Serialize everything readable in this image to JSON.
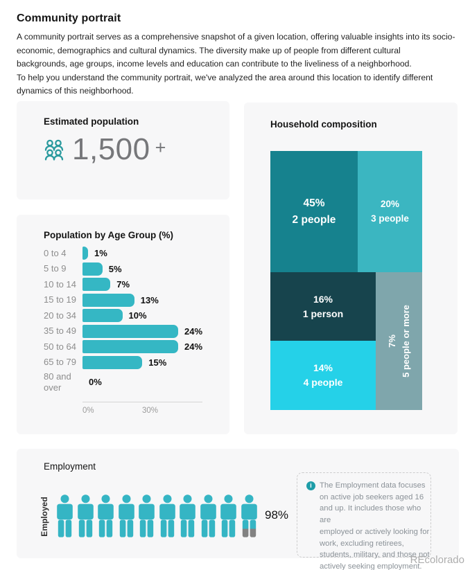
{
  "page": {
    "title": "Community portrait",
    "description": "A community portrait serves as a comprehensive snapshot of a given location, offering valuable insights into its socio-\neconomic, demographics and cultural dynamics. The diversity make up of people from different cultural\nbackgrounds, age groups, income levels and education  can contribute to the liveliness of a neighborhood.\nTo help you understand the community portrait, we've analyzed the area around this location to identify different\ndynamics of this neighborhood.",
    "watermark": "REcolorado"
  },
  "icons": {
    "info_glyph": "i",
    "people_group": "people-group-icon",
    "person": "person-icon"
  },
  "colors": {
    "card_bg": "#F7F7F8",
    "accent_teal": "#35B7C4",
    "icon_outline_teal": "#2A9A9E",
    "value_gray": "#76777A"
  },
  "population_card": {
    "title": "Estimated population",
    "value": "1,500",
    "suffix": "+"
  },
  "chart_data": [
    {
      "id": "population_by_age_group",
      "type": "bar",
      "orientation": "horizontal",
      "title": "Population by Age Group (%)",
      "categories": [
        "0 to 4",
        "5 to 9",
        "10 to 14",
        "15 to 19",
        "20 to 34",
        "35 to 49",
        "50 to 64",
        "65 to 79",
        "80 and over"
      ],
      "values": [
        1,
        5,
        7,
        13,
        10,
        24,
        24,
        15,
        0
      ],
      "value_labels": [
        "1%",
        "5%",
        "7%",
        "13%",
        "10%",
        "24%",
        "24%",
        "15%",
        "0%"
      ],
      "xlim": [
        0,
        30
      ],
      "x_tick_labels": [
        "0%",
        "30%"
      ],
      "bar_color": "#35B7C4",
      "grid": false,
      "legend": "none"
    },
    {
      "id": "household_composition",
      "type": "treemap",
      "title": "Household composition",
      "slices": [
        {
          "label": "2 people",
          "value": 45,
          "value_label": "45%",
          "color": "#16828E"
        },
        {
          "label": "3 people",
          "value": 20,
          "value_label": "20%",
          "color": "#3BB6C1"
        },
        {
          "label": "1 person",
          "value": 16,
          "value_label": "16%",
          "color": "#17444D"
        },
        {
          "label": "4 people",
          "value": 14,
          "value_label": "14%",
          "color": "#25D1E8"
        },
        {
          "label": "5 people or more",
          "value": 7,
          "value_label": "7%",
          "color": "#7FA6AC"
        }
      ]
    },
    {
      "id": "employment",
      "type": "pictogram",
      "title": "Employment",
      "category": "Employed",
      "value": 98,
      "value_label": "98%",
      "icons_total": 10,
      "icon_color": "#35B5C4",
      "remainder_color": "#828282",
      "note": "The Employment data focuses\non active job seekers aged 16\nand up. It includes those who are\nemployed or actively looking for\nwork, excluding retirees,\nstudents, military, and those not\nactively seeking employment."
    }
  ]
}
